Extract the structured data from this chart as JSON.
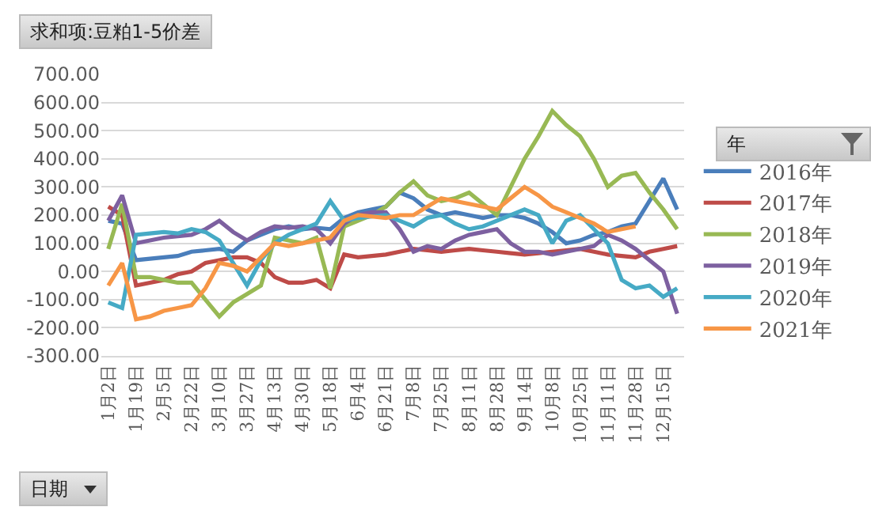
{
  "chart_data": {
    "type": "line",
    "title": "求和项:豆粕1-5价差",
    "xlabel": "日期",
    "legend_title": "年",
    "categories": [
      "1月2日",
      null,
      "1月19日",
      null,
      "2月5日",
      null,
      "2月22日",
      null,
      "3月10日",
      null,
      "3月27日",
      null,
      "4月13日",
      null,
      "4月30日",
      null,
      "5月18日",
      null,
      "6月4日",
      null,
      "6月21日",
      null,
      "7月8日",
      null,
      "7月25日",
      null,
      "8月11日",
      null,
      "8月28日",
      null,
      "9月14日",
      null,
      "10月8日",
      null,
      "10月25日",
      null,
      "11月11日",
      null,
      "11月28日",
      null,
      "12月15日",
      null
    ],
    "ylim": [
      -300,
      700
    ],
    "yticks": [
      {
        "value": -300,
        "label": "-300.00"
      },
      {
        "value": -200,
        "label": "-200.00"
      },
      {
        "value": -100,
        "label": "-100.00"
      },
      {
        "value": 0,
        "label": "0.00"
      },
      {
        "value": 100,
        "label": "100.00"
      },
      {
        "value": 200,
        "label": "200.00"
      },
      {
        "value": 300,
        "label": "300.00"
      },
      {
        "value": 400,
        "label": "400.00"
      },
      {
        "value": 500,
        "label": "500.00"
      },
      {
        "value": 600,
        "label": "600.00"
      },
      {
        "value": 700,
        "label": "700.00"
      }
    ],
    "grid": "y",
    "legend": "right",
    "marker": "none",
    "line_style": "solid",
    "series": [
      {
        "name": "2016年",
        "color": "#4a7ebb",
        "values": [
          180,
          170,
          40,
          45,
          50,
          55,
          70,
          75,
          80,
          70,
          110,
          130,
          150,
          160,
          150,
          155,
          150,
          190,
          210,
          220,
          230,
          280,
          260,
          220,
          200,
          210,
          200,
          190,
          200,
          200,
          190,
          170,
          140,
          100,
          110,
          130,
          140,
          160,
          170,
          250,
          330,
          220
        ]
      },
      {
        "name": "2017年",
        "color": "#be4b48",
        "values": [
          230,
          200,
          -50,
          -40,
          -30,
          -10,
          0,
          30,
          40,
          50,
          50,
          30,
          -20,
          -40,
          -40,
          -30,
          -60,
          60,
          50,
          55,
          60,
          70,
          80,
          75,
          70,
          75,
          80,
          75,
          70,
          65,
          60,
          65,
          70,
          75,
          80,
          70,
          60,
          55,
          50,
          70,
          80,
          90
        ]
      },
      {
        "name": "2018年",
        "color": "#98b954",
        "values": [
          80,
          240,
          -20,
          -20,
          -30,
          -40,
          -40,
          -100,
          -160,
          -110,
          -80,
          -50,
          120,
          110,
          100,
          120,
          -60,
          160,
          180,
          200,
          230,
          280,
          320,
          270,
          250,
          260,
          280,
          240,
          200,
          300,
          400,
          480,
          570,
          520,
          480,
          400,
          300,
          340,
          350,
          280,
          220,
          150
        ]
      },
      {
        "name": "2019年",
        "color": "#7d60a0",
        "values": [
          180,
          270,
          100,
          110,
          120,
          125,
          130,
          150,
          180,
          140,
          110,
          140,
          160,
          155,
          160,
          150,
          100,
          170,
          200,
          210,
          210,
          150,
          70,
          90,
          80,
          110,
          130,
          140,
          150,
          100,
          70,
          70,
          60,
          70,
          80,
          90,
          130,
          110,
          80,
          40,
          0,
          -150
        ]
      },
      {
        "name": "2020年",
        "color": "#46aac5",
        "values": [
          -110,
          -130,
          130,
          135,
          140,
          135,
          150,
          140,
          110,
          30,
          -50,
          40,
          100,
          130,
          150,
          170,
          250,
          180,
          190,
          195,
          200,
          180,
          160,
          190,
          200,
          170,
          150,
          160,
          180,
          200,
          220,
          200,
          100,
          180,
          200,
          150,
          100,
          -30,
          -60,
          -50,
          -90,
          -60
        ]
      },
      {
        "name": "2021年",
        "color": "#f79646",
        "values": [
          -50,
          30,
          -170,
          -160,
          -140,
          -130,
          -120,
          -60,
          30,
          20,
          0,
          50,
          100,
          90,
          100,
          110,
          120,
          180,
          200,
          195,
          190,
          200,
          200,
          230,
          260,
          250,
          240,
          230,
          220,
          260,
          300,
          270,
          230,
          210,
          190,
          170,
          140,
          150,
          160,
          null,
          null,
          null
        ]
      }
    ]
  }
}
